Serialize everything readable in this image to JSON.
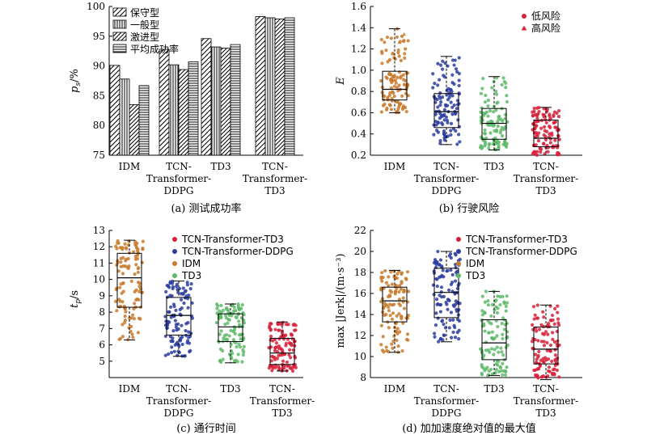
{
  "chart_data": [
    {
      "type": "bar",
      "caption": "(a) 测试成功率",
      "ylabel_main": "p",
      "ylabel_sub": "s",
      "ylabel_unit": "/%",
      "ylim": [
        75,
        100
      ],
      "yticks": [
        75,
        80,
        85,
        90,
        95,
        100
      ],
      "categories": [
        [
          "IDM"
        ],
        [
          "TCN-",
          "Transformer-",
          "DDPG"
        ],
        [
          "TD3"
        ],
        [
          "TCN-",
          "Transformer-",
          "TD3"
        ]
      ],
      "series": [
        {
          "name": "保守型",
          "pattern": "diag",
          "values": [
            90.1,
            92.8,
            94.6,
            98.3
          ]
        },
        {
          "name": "一般型",
          "pattern": "vert",
          "values": [
            87.8,
            90.2,
            93.2,
            98.1
          ]
        },
        {
          "name": "激进型",
          "pattern": "diag2",
          "values": [
            83.5,
            89.4,
            93.0,
            97.9
          ]
        },
        {
          "name": "平均成功率",
          "pattern": "horiz",
          "values": [
            86.7,
            90.7,
            93.6,
            98.1
          ]
        }
      ]
    },
    {
      "type": "box",
      "caption": "(b) 行驶风险",
      "ylabel": "E",
      "ylim": [
        0.2,
        1.6
      ],
      "yticks": [
        "0.2",
        "0.4",
        "0.6",
        "0.8",
        "1.0",
        "1.2",
        "1.4",
        "1.6"
      ],
      "categories": [
        [
          "IDM"
        ],
        [
          "TCN-",
          "Transformer-",
          "DDPG"
        ],
        [
          "TD3"
        ],
        [
          "TCN-",
          "Transformer-",
          "TD3"
        ]
      ],
      "colors": [
        "#c87a2a",
        "#2d3da0",
        "#5fb86a",
        "#d8203a"
      ],
      "boxes": [
        {
          "min": 0.6,
          "q1": 0.72,
          "median": 0.82,
          "q3": 0.99,
          "max": 1.39
        },
        {
          "min": 0.3,
          "q1": 0.46,
          "median": 0.61,
          "q3": 0.78,
          "max": 1.13
        },
        {
          "min": 0.25,
          "q1": 0.35,
          "median": 0.5,
          "q3": 0.64,
          "max": 0.94
        },
        {
          "min": 0.2,
          "q1": 0.28,
          "median": 0.36,
          "q3": 0.53,
          "max": 0.65
        }
      ],
      "legend": [
        {
          "label": "低风险",
          "marker": "circle",
          "color": "#d8203a"
        },
        {
          "label": "高风险",
          "marker": "triangle",
          "color": "#d8203a"
        }
      ]
    },
    {
      "type": "box",
      "caption": "(c) 通行时间",
      "ylabel_main": "t",
      "ylabel_sub": "p",
      "ylabel_unit": "/s",
      "ylim": [
        4,
        13
      ],
      "yticks": [
        "5",
        "6",
        "7",
        "8",
        "9",
        "10",
        "11",
        "12",
        "13"
      ],
      "categories": [
        [
          "IDM"
        ],
        [
          "TCN-",
          "Transformer-",
          "DDPG"
        ],
        [
          "TD3"
        ],
        [
          "TCN-",
          "Transformer-",
          "TD3"
        ]
      ],
      "colors": [
        "#c87a2a",
        "#2d3da0",
        "#5fb86a",
        "#d8203a"
      ],
      "boxes": [
        {
          "min": 6.3,
          "q1": 8.3,
          "median": 10.1,
          "q3": 11.6,
          "max": 12.4
        },
        {
          "min": 5.3,
          "q1": 6.6,
          "median": 7.8,
          "q3": 8.9,
          "max": 9.9
        },
        {
          "min": 4.9,
          "q1": 6.2,
          "median": 7.1,
          "q3": 7.9,
          "max": 8.5
        },
        {
          "min": 4.4,
          "q1": 4.8,
          "median": 5.5,
          "q3": 6.4,
          "max": 7.4
        }
      ],
      "legend": [
        {
          "label": "TCN-Transformer-TD3",
          "marker": "circle",
          "color": "#d8203a"
        },
        {
          "label": "TCN-Transformer-DDPG",
          "marker": "circle",
          "color": "#2d3da0"
        },
        {
          "label": "IDM",
          "marker": "circle",
          "color": "#c87a2a"
        },
        {
          "label": "TD3",
          "marker": "circle",
          "color": "#5fb86a"
        }
      ]
    },
    {
      "type": "box",
      "caption": "(d) 加加速度绝对值的最大值",
      "ylabel": "max |Jerk|/(m·s⁻³)",
      "ylim": [
        8,
        22
      ],
      "yticks": [
        "8",
        "10",
        "12",
        "14",
        "16",
        "18",
        "20",
        "22"
      ],
      "categories": [
        [
          "IDM"
        ],
        [
          "TCN-",
          "Transformer-",
          "DDPG"
        ],
        [
          "TD3"
        ],
        [
          "TCN-",
          "Transformer-",
          "TD3"
        ]
      ],
      "colors": [
        "#c87a2a",
        "#2d3da0",
        "#5fb86a",
        "#d8203a"
      ],
      "boxes": [
        {
          "min": 10.4,
          "q1": 13.3,
          "median": 15.3,
          "q3": 16.6,
          "max": 18.2
        },
        {
          "min": 11.4,
          "q1": 13.7,
          "median": 16.1,
          "q3": 18.4,
          "max": 20.0
        },
        {
          "min": 8.2,
          "q1": 9.7,
          "median": 11.3,
          "q3": 13.5,
          "max": 16.2
        },
        {
          "min": 7.8,
          "q1": 9.3,
          "median": 10.7,
          "q3": 12.8,
          "max": 14.9
        }
      ],
      "legend": [
        {
          "label": "TCN-Transformer-TD3",
          "marker": "circle",
          "color": "#d8203a"
        },
        {
          "label": "TCN-Transformer-DDPG",
          "marker": "circle",
          "color": "#2d3da0"
        },
        {
          "label": "IDM",
          "marker": "circle",
          "color": "#c87a2a"
        },
        {
          "label": "TD3",
          "marker": "circle",
          "color": "#5fb86a"
        }
      ]
    }
  ]
}
